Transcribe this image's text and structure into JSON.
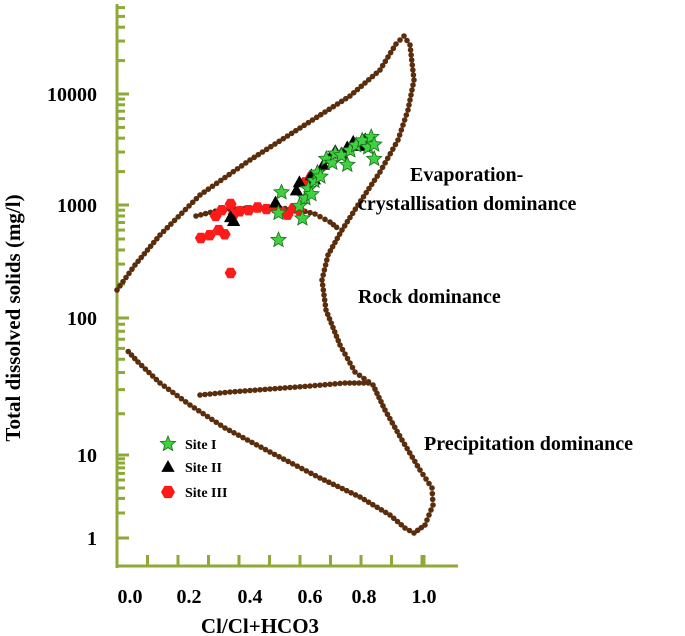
{
  "chart_data": {
    "type": "scatter",
    "title": "",
    "xlabel": "Cl/Cl+HCO3",
    "ylabel": "Total dissolved solids (mg/l)",
    "xlim": [
      0.0,
      1.0
    ],
    "ylim": [
      1,
      10000
    ],
    "y_scale": "log",
    "x_ticks": [
      "0.0",
      "0.2",
      "0.4",
      "0.6",
      "0.8",
      "1.0"
    ],
    "y_ticks": [
      "1",
      "10",
      "100",
      "1000",
      "10000"
    ],
    "region_labels": {
      "evaporation_line1": "Evaporation-",
      "evaporation_line2": "crystallisation dominance",
      "rock": "Rock dominance",
      "precipitation": "Precipitation dominance"
    },
    "legend_position": "bottom-left",
    "colors": {
      "axis": "#8fa83a",
      "boundary": "#5a2d0c",
      "site1": "#3fd13f",
      "site2": "#000000",
      "site3": "#ff1a1a"
    },
    "series": [
      {
        "name": "Site I",
        "marker": "star",
        "points": [
          [
            0.52,
            1300
          ],
          [
            0.51,
            850
          ],
          [
            0.51,
            490
          ],
          [
            0.58,
            980
          ],
          [
            0.59,
            760
          ],
          [
            0.6,
            1150
          ],
          [
            0.61,
            1400
          ],
          [
            0.62,
            1250
          ],
          [
            0.63,
            1650
          ],
          [
            0.64,
            1950
          ],
          [
            0.65,
            1800
          ],
          [
            0.67,
            2600
          ],
          [
            0.69,
            2400
          ],
          [
            0.7,
            2900
          ],
          [
            0.72,
            2800
          ],
          [
            0.74,
            2300
          ],
          [
            0.75,
            3100
          ],
          [
            0.77,
            3450
          ],
          [
            0.79,
            3800
          ],
          [
            0.81,
            3300
          ],
          [
            0.82,
            4100
          ],
          [
            0.83,
            3500
          ],
          [
            0.83,
            2600
          ]
        ]
      },
      {
        "name": "Site II",
        "marker": "triangle",
        "points": [
          [
            0.35,
            780
          ],
          [
            0.36,
            720
          ],
          [
            0.5,
            1050
          ],
          [
            0.57,
            1350
          ],
          [
            0.58,
            1600
          ],
          [
            0.62,
            1850
          ],
          [
            0.63,
            1700
          ],
          [
            0.66,
            2300
          ],
          [
            0.68,
            2600
          ],
          [
            0.7,
            3050
          ],
          [
            0.72,
            2900
          ],
          [
            0.74,
            3300
          ],
          [
            0.76,
            3700
          ],
          [
            0.78,
            3400
          ],
          [
            0.8,
            3900
          ]
        ]
      },
      {
        "name": "Site III",
        "marker": "hexagon",
        "points": [
          [
            0.25,
            510
          ],
          [
            0.28,
            540
          ],
          [
            0.31,
            600
          ],
          [
            0.33,
            550
          ],
          [
            0.3,
            800
          ],
          [
            0.32,
            900
          ],
          [
            0.35,
            1020
          ],
          [
            0.36,
            830
          ],
          [
            0.35,
            250
          ],
          [
            0.38,
            880
          ],
          [
            0.41,
            900
          ],
          [
            0.44,
            950
          ],
          [
            0.47,
            920
          ],
          [
            0.5,
            940
          ],
          [
            0.52,
            870
          ],
          [
            0.54,
            820
          ],
          [
            0.56,
            930
          ],
          [
            0.58,
            900
          ],
          [
            0.6,
            1600
          ],
          [
            0.62,
            1800
          ]
        ]
      }
    ]
  }
}
